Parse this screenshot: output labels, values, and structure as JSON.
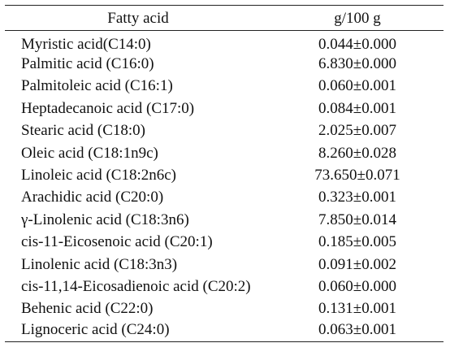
{
  "table": {
    "headers": {
      "fatty_acid": "Fatty acid",
      "amount": "g/100 g"
    },
    "rows": [
      {
        "name": "Myristic acid(C14:0)",
        "value": "0.044±0.000"
      },
      {
        "name": "Palmitic acid (C16:0)",
        "value": "6.830±0.000"
      },
      {
        "name": "Palmitoleic acid (C16:1)",
        "value": "0.060±0.001"
      },
      {
        "name": "Heptadecanoic acid (C17:0)",
        "value": "0.084±0.001"
      },
      {
        "name": "Stearic acid (C18:0)",
        "value": "2.025±0.007"
      },
      {
        "name": "Oleic acid (C18:1n9c)",
        "value": "8.260±0.028"
      },
      {
        "name": "Linoleic acid (C18:2n6c)",
        "value": "73.650±0.071"
      },
      {
        "name": "Arachidic acid (C20:0)",
        "value": "0.323±0.001"
      },
      {
        "name": "γ-Linolenic acid (C18:3n6)",
        "value": "7.850±0.014"
      },
      {
        "name": "cis-11-Eicosenoic acid (C20:1)",
        "value": "0.185±0.005"
      },
      {
        "name": "Linolenic acid (C18:3n3)",
        "value": "0.091±0.002"
      },
      {
        "name": "cis-11,14-Eicosadienoic acid (C20:2)",
        "value": "0.060±0.000"
      },
      {
        "name": "Behenic acid (C22:0)",
        "value": "0.131±0.001"
      },
      {
        "name": "Lignoceric acid (C24:0)",
        "value": "0.063±0.001"
      }
    ]
  }
}
